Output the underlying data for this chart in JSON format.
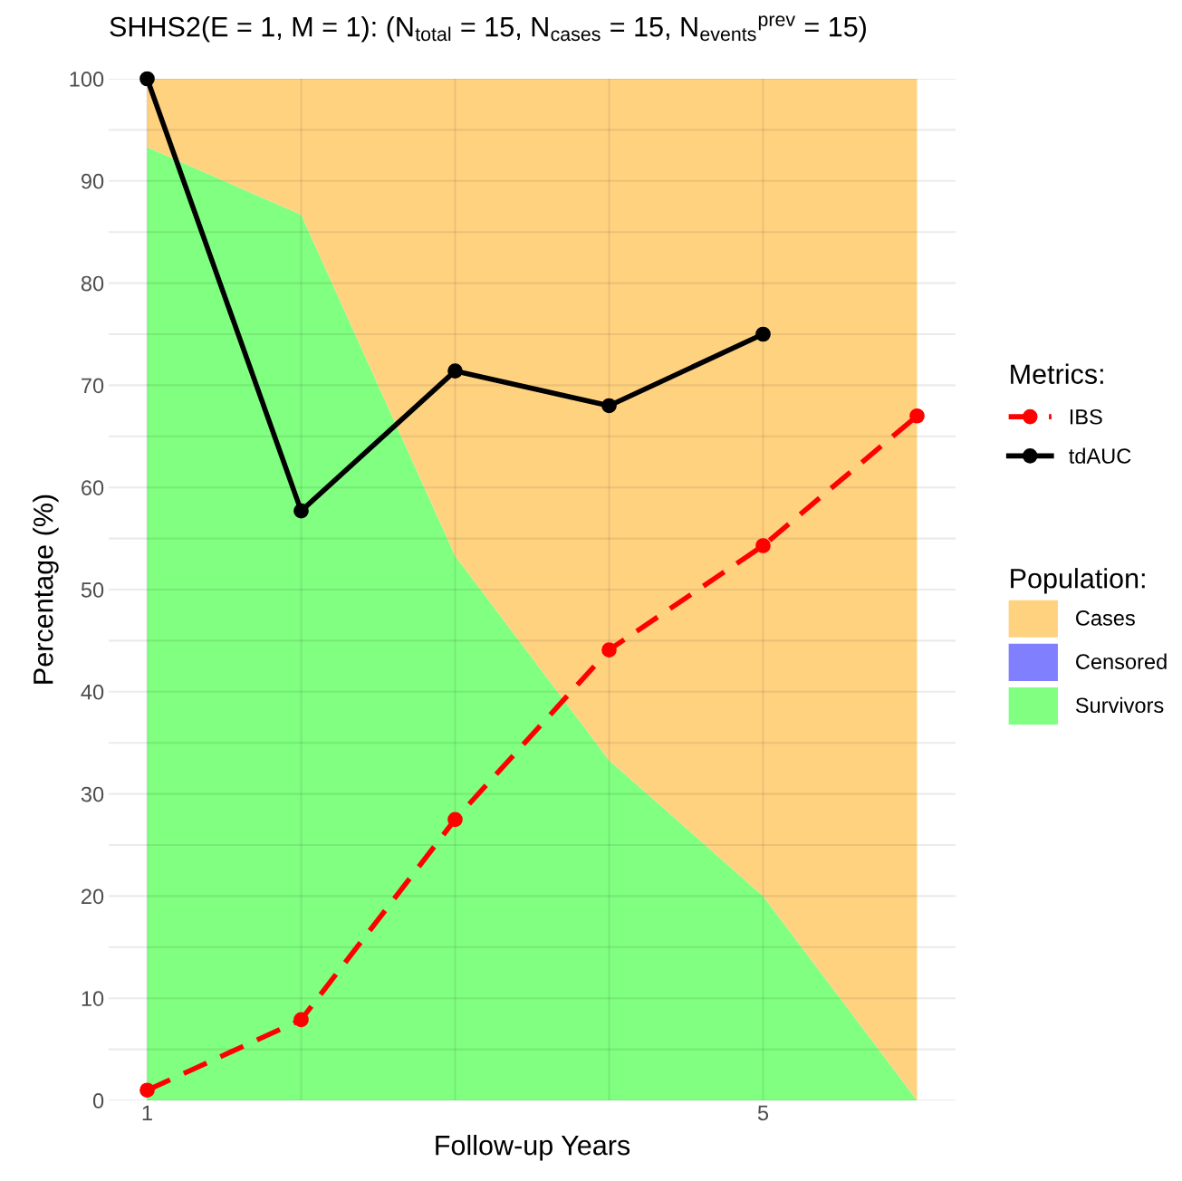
{
  "chart_data": {
    "type": "line",
    "title": "SHHS2(E = 1, M = 1): (N$_{total}$ = 15, N$_{cases}$ = 15, N$_{events}$$^{prev}$ = 15)",
    "xlabel": "Follow-up Years",
    "ylabel": "Percentage (%)",
    "legend_title": [
      "Metrics:",
      "Population:"
    ],
    "x": [
      1,
      2,
      3,
      4,
      5,
      6
    ],
    "xlim": [
      0.75,
      6.25
    ],
    "xticks": [
      1,
      {
        "value": 2,
        "label": null
      },
      {
        "value": 3,
        "label": null
      },
      {
        "value": 4,
        "label": null
      },
      5
    ],
    "ylim": [
      0,
      100
    ],
    "yticks": [
      0,
      {
        "value": 5,
        "label": null
      },
      10,
      {
        "value": 15,
        "label": null
      },
      20,
      {
        "value": 25,
        "label": null
      },
      30,
      {
        "value": 35,
        "label": null
      },
      40,
      {
        "value": 45,
        "label": null
      },
      50,
      {
        "value": 55,
        "label": null
      },
      60,
      {
        "value": 65,
        "label": null
      },
      70,
      {
        "value": 75,
        "label": null
      },
      80,
      {
        "value": 85,
        "label": null
      },
      90,
      {
        "value": 95,
        "label": null
      },
      100
    ],
    "grid": true,
    "legend": "right",
    "stacked": true,
    "series": [
      {
        "name": "Survivors",
        "type": "area",
        "color": "#80ff80",
        "values": [
          93.3,
          86.7,
          53.3,
          33.3,
          20.0,
          0
        ]
      },
      {
        "name": "Censored",
        "type": "area",
        "color": "#8080ff",
        "values": [
          null,
          null,
          null,
          null,
          null,
          null
        ]
      },
      {
        "name": "Cases",
        "type": "area",
        "color": "#ffd280",
        "values": [
          6.7,
          13.3,
          46.7,
          66.7,
          80.0,
          100
        ]
      },
      {
        "name": "IBS",
        "color": "#ff0000",
        "line_style": "dashed",
        "marker": "circle",
        "values": [
          1.0,
          7.9,
          27.5,
          44.1,
          54.3,
          67.0
        ]
      },
      {
        "name": "tdAUC",
        "color": "#000000",
        "line_style": "solid",
        "marker": "circle",
        "values": [
          100,
          57.7,
          71.4,
          68.0,
          75.0,
          null
        ]
      }
    ]
  }
}
